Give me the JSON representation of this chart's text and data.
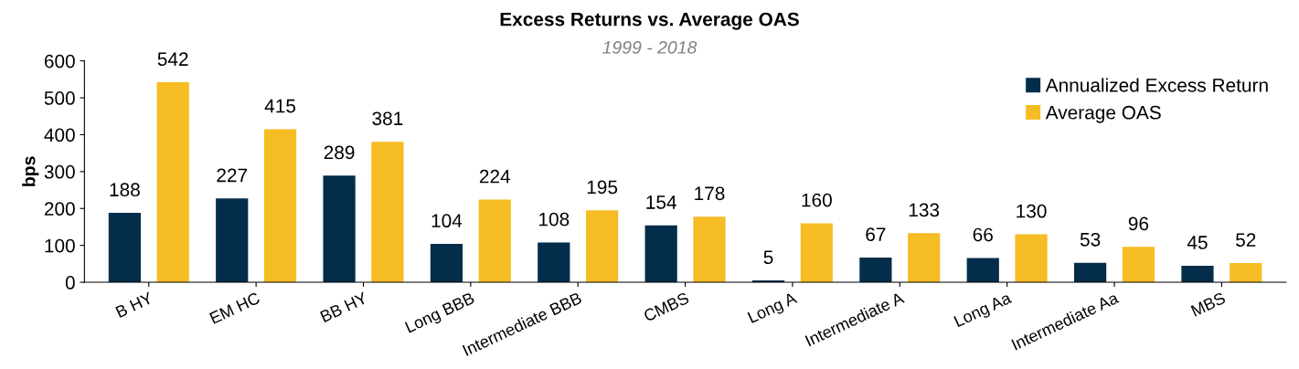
{
  "chart_data": {
    "type": "bar",
    "title": "Excess Returns vs. Average OAS",
    "subtitle": "1999 - 2018",
    "ylabel": "bps",
    "categories": [
      "B HY",
      "EM HC",
      "BB HY",
      "Long BBB",
      "Intermediate BBB",
      "CMBS",
      "Long A",
      "Intermediate A",
      "Long Aa",
      "Intermediate Aa",
      "MBS"
    ],
    "series": [
      {
        "name": "Annualized Excess Return",
        "color": "#032d4b",
        "values": [
          188,
          227,
          289,
          104,
          108,
          154,
          5,
          67,
          66,
          53,
          45
        ]
      },
      {
        "name": "Average OAS",
        "color": "#f5bc23",
        "values": [
          542,
          415,
          381,
          224,
          195,
          178,
          160,
          133,
          130,
          96,
          52
        ]
      }
    ],
    "ylim": [
      0,
      600
    ],
    "yticks": [
      0,
      100,
      200,
      300,
      400,
      500,
      600
    ],
    "grid": false,
    "legend": "top right",
    "data_labels": true
  }
}
